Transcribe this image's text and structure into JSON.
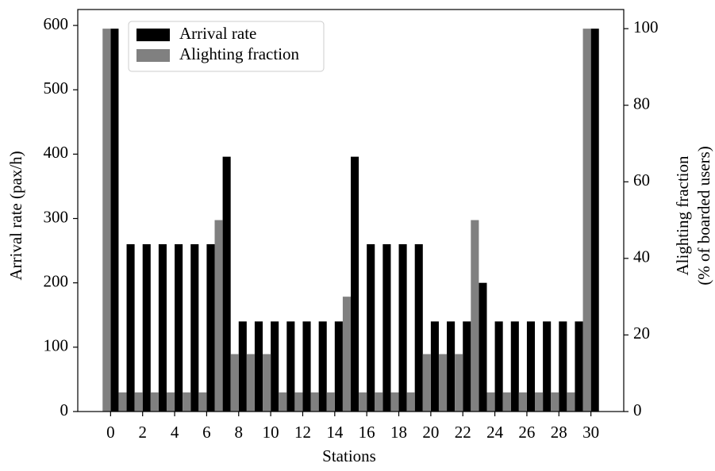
{
  "chart_data": {
    "type": "bar",
    "x_label": "Stations",
    "y_label": "Arrival rate (pax/h)",
    "y2_label": [
      "Alighting fraction",
      "(% of boarded users)"
    ],
    "x": [
      0,
      1,
      2,
      3,
      4,
      5,
      6,
      7,
      8,
      9,
      10,
      11,
      12,
      13,
      14,
      15,
      16,
      17,
      18,
      19,
      20,
      21,
      22,
      23,
      24,
      25,
      26,
      27,
      28,
      29,
      30
    ],
    "xlim": [
      -2.05,
      32.05
    ],
    "xticks": [
      0,
      2,
      4,
      6,
      8,
      10,
      12,
      14,
      16,
      18,
      20,
      22,
      24,
      26,
      28,
      30
    ],
    "ylim": [
      0,
      624.75
    ],
    "yticks": [
      0,
      100,
      200,
      300,
      400,
      500,
      600
    ],
    "y2lim": [
      0,
      105
    ],
    "y2ticks": [
      0,
      20,
      40,
      60,
      80,
      100
    ],
    "legend": "upper left",
    "series": [
      {
        "name": "Arrival rate",
        "color": "#000000",
        "axis": "y",
        "values": [
          595,
          260,
          260,
          260,
          260,
          260,
          260,
          396,
          140,
          140,
          140,
          140,
          140,
          140,
          140,
          396,
          260,
          260,
          260,
          260,
          140,
          140,
          140,
          200,
          140,
          140,
          140,
          140,
          140,
          140,
          595
        ]
      },
      {
        "name": "Alighting fraction",
        "color": "#808080",
        "axis": "y2",
        "values": [
          100,
          5,
          5,
          5,
          5,
          5,
          5,
          50,
          15,
          15,
          15,
          5,
          5,
          5,
          5,
          30,
          5,
          5,
          5,
          5,
          15,
          15,
          15,
          50,
          5,
          5,
          5,
          5,
          5,
          5,
          100
        ]
      }
    ]
  }
}
